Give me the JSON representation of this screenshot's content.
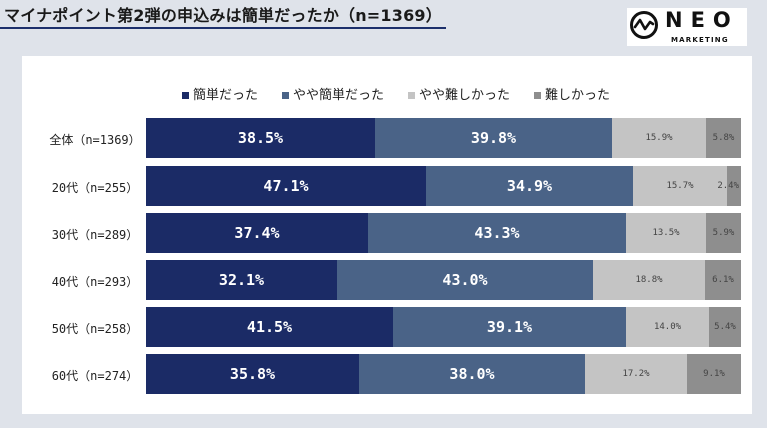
{
  "title": "マイナポイント第2弾の申込みは簡単だったか（n=1369）",
  "logo": {
    "name": "NEO",
    "sub": "MARKETING"
  },
  "colors": {
    "easy": "#1b2b66",
    "somewhat_easy": "#4a6387",
    "somewhat_difficult": "#c4c4c4",
    "difficult": "#8e8e8e",
    "background": "#dfe3ea",
    "title_rule": "#1c2f6b"
  },
  "chart_data": {
    "type": "bar",
    "orientation": "horizontal",
    "stacked": true,
    "normalized": true,
    "title": "マイナポイント第2弾の申込みは簡単だったか（n=1369）",
    "legend_position": "top",
    "categories": [
      "全体（n=1369）",
      "20代（n=255）",
      "30代（n=289）",
      "40代（n=293）",
      "50代（n=258）",
      "60代（n=274）"
    ],
    "series": [
      {
        "name": "簡単だった",
        "values": [
          38.5,
          47.1,
          37.4,
          32.1,
          41.5,
          35.8
        ],
        "labels": [
          "38.5%",
          "47.1%",
          "37.4%",
          "32.1%",
          "41.5%",
          "35.8%"
        ]
      },
      {
        "name": "やや簡単だった",
        "values": [
          39.8,
          34.9,
          43.3,
          43.0,
          39.1,
          38.0
        ],
        "labels": [
          "39.8%",
          "34.9%",
          "43.3%",
          "43.0%",
          "39.1%",
          "38.0%"
        ]
      },
      {
        "name": "やや難しかった",
        "values": [
          15.9,
          15.7,
          13.5,
          18.8,
          14.0,
          17.2
        ],
        "labels": [
          "15.9%",
          "15.7%",
          "13.5%",
          "18.8%",
          "14.0%",
          "17.2%"
        ]
      },
      {
        "name": "難しかった",
        "values": [
          5.8,
          2.4,
          5.9,
          6.1,
          5.4,
          9.1
        ],
        "labels": [
          "5.8%",
          "2.4%",
          "5.9%",
          "6.1%",
          "5.4%",
          "9.1%"
        ]
      }
    ]
  }
}
